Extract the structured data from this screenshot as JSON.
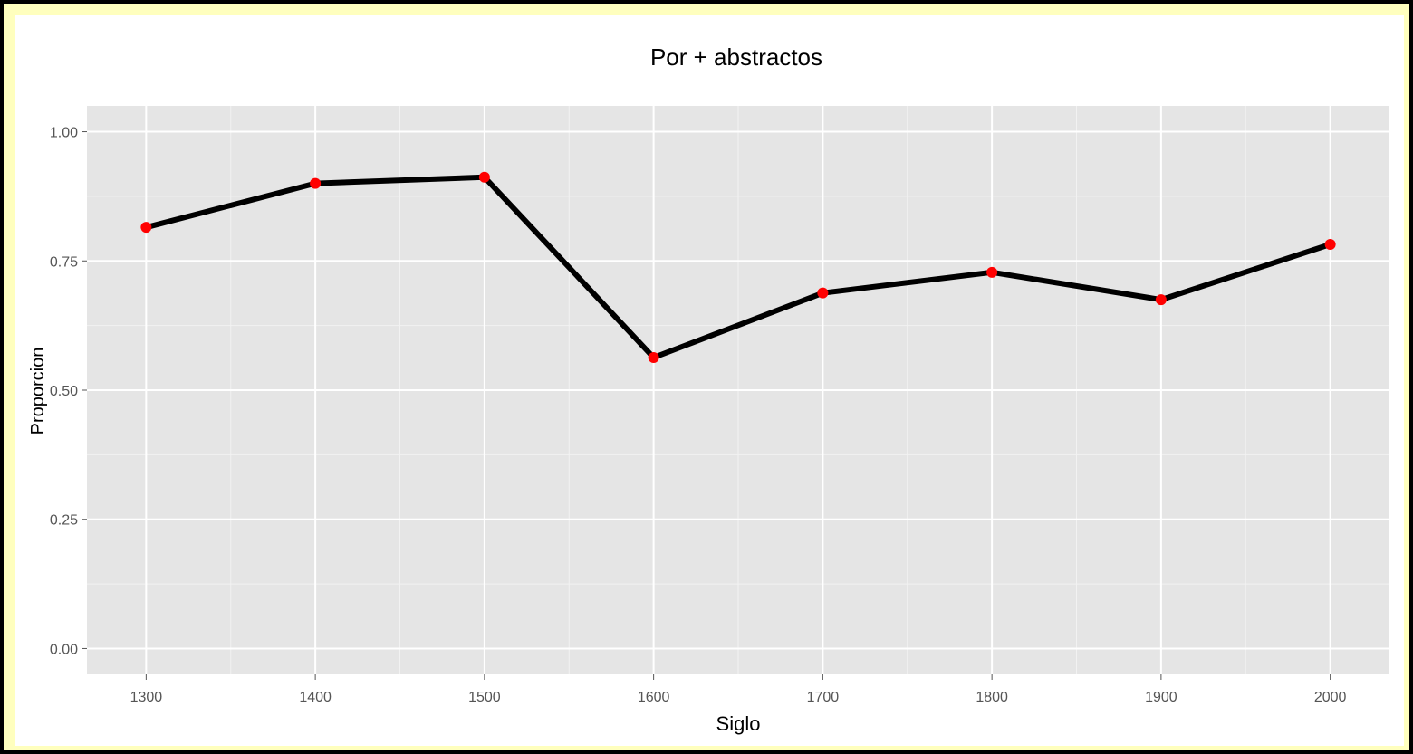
{
  "chart_data": {
    "type": "line",
    "title": "Por + abstractos",
    "xlabel": "Siglo",
    "ylabel": "Proporcion",
    "x": [
      1300,
      1400,
      1500,
      1600,
      1700,
      1800,
      1900,
      2000
    ],
    "y": [
      0.815,
      0.9,
      0.912,
      0.563,
      0.688,
      0.728,
      0.675,
      0.782
    ],
    "xlim": [
      1265,
      2035
    ],
    "ylim": [
      -0.05,
      1.05
    ],
    "xticks": [
      1300,
      1400,
      1500,
      1600,
      1700,
      1800,
      1900,
      2000
    ],
    "xtick_labels": [
      "1300",
      "1400",
      "1500",
      "1600",
      "1700",
      "1800",
      "1900",
      "2000"
    ],
    "yticks": [
      0.0,
      0.25,
      0.5,
      0.75,
      1.0
    ],
    "ytick_labels": [
      "0.00",
      "0.25",
      "0.50",
      "0.75",
      "1.00"
    ],
    "grid": true,
    "legend": "none",
    "colors": {
      "line": "#000000",
      "points": "#ff0000",
      "panel_background": "#e5e5e5",
      "grid": "#ffffff",
      "frame": "#000000",
      "border": "#ffffbe"
    }
  }
}
